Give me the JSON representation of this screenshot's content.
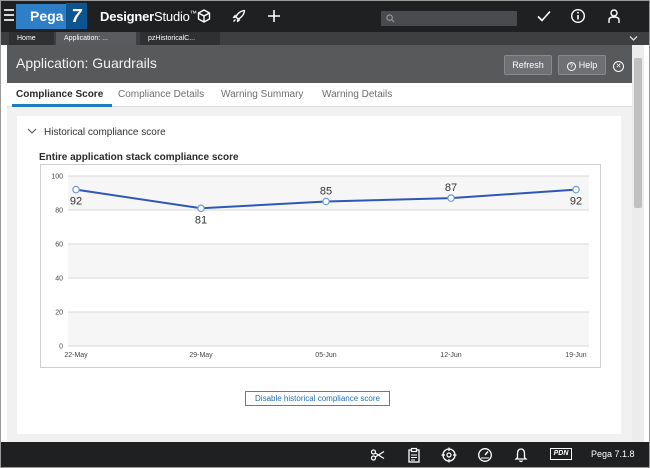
{
  "header": {
    "brand": "Pega",
    "brand_version": "7",
    "product_bold": "Designer",
    "product_rest": "Studio",
    "product_tm": "™",
    "search_placeholder": ""
  },
  "work_tabs": [
    {
      "label": "Home"
    },
    {
      "label": "Application: ..."
    },
    {
      "label": "pzHistoricalC..."
    }
  ],
  "page": {
    "title": "Application: Guardrails",
    "refresh_label": "Refresh",
    "help_label": "Help"
  },
  "sub_tabs": [
    {
      "label": "Compliance Score",
      "active": true
    },
    {
      "label": "Compliance Details",
      "active": false
    },
    {
      "label": "Warning Summary",
      "active": false
    },
    {
      "label": "Warning Details",
      "active": false
    }
  ],
  "section": {
    "title": "Historical compliance score",
    "disable_label": "Disable historical compliance score"
  },
  "chart_data": {
    "type": "line",
    "title": "Entire application stack compliance score",
    "categories": [
      "22-May",
      "29-May",
      "05-Jun",
      "12-Jun",
      "19-Jun"
    ],
    "series": [
      {
        "values": [
          92,
          81,
          85,
          87,
          92
        ],
        "color": "#2f57b8"
      }
    ],
    "ylim": [
      0,
      100
    ],
    "yticks": [
      0,
      20,
      40,
      60,
      80,
      100
    ],
    "data_labels": true,
    "grid": true
  },
  "footer": {
    "pdn_label": "PDN",
    "version": "Pega 7.1.8"
  },
  "icons": {
    "top": [
      "hamburger-icon",
      "cube-icon",
      "rocket-icon",
      "plus-icon",
      "search-icon",
      "checkmark-icon",
      "info-icon",
      "user-icon"
    ],
    "bottom": [
      "tracer-icon",
      "clipboard-icon",
      "target-icon",
      "gauge-icon",
      "bell-icon"
    ]
  }
}
